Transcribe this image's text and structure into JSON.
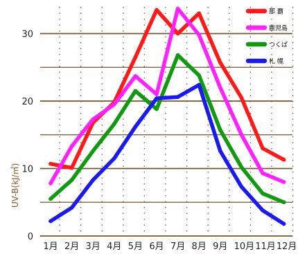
{
  "chart_data": {
    "type": "line",
    "ylabel": "UV-B(kJ/㎡)",
    "ylim": [
      0,
      34
    ],
    "yticks": [
      0,
      10,
      20,
      30
    ],
    "categories": [
      "1月",
      "2月",
      "3月",
      "4月",
      "5月",
      "6月",
      "7月",
      "8月",
      "9月",
      "10月",
      "11月",
      "12月"
    ],
    "grid": true,
    "legend_position": "top-right",
    "series": [
      {
        "name": "那 覇",
        "color": "#ff1a1a",
        "values": [
          10.7,
          10.1,
          16.8,
          19.8,
          26.5,
          33.5,
          30.0,
          33.0,
          25.7,
          20.5,
          13.0,
          11.3
        ]
      },
      {
        "name": "鹿児島",
        "color": "#ff22ff",
        "values": [
          7.8,
          13.3,
          17.3,
          19.5,
          23.7,
          21.0,
          33.7,
          29.8,
          22.0,
          15.0,
          9.3,
          8.0
        ]
      },
      {
        "name": "つくば",
        "color": "#119911",
        "values": [
          5.5,
          8.3,
          12.6,
          16.6,
          21.5,
          18.8,
          26.8,
          23.8,
          15.7,
          10.2,
          6.3,
          5.0
        ]
      },
      {
        "name": "札 幌",
        "color": "#1a1aee",
        "values": [
          2.2,
          4.2,
          8.3,
          11.5,
          16.2,
          20.4,
          20.6,
          22.4,
          12.6,
          7.3,
          3.8,
          1.8
        ]
      }
    ]
  }
}
